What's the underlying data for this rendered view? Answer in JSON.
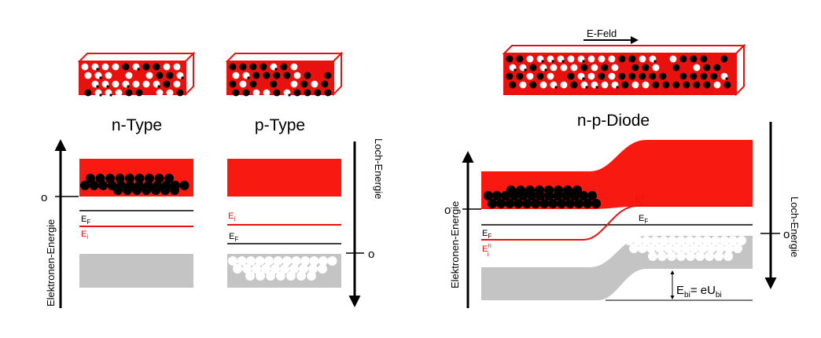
{
  "colors": {
    "conduction_band": "#f81a10",
    "valence_band": "#c4c4c4",
    "fermi_line": "#000000",
    "intrinsic_line": "#e8110d",
    "electron": "#000000",
    "hole": "#ffffff",
    "crystal_frame": "#e8110d"
  },
  "icons": {
    "electron": "black-dot",
    "hole": "white-dot",
    "crystal": "crystal-block-3d",
    "axis": "arrow"
  },
  "left_panel": {
    "n_title": "n-Type",
    "p_title": "p-Type",
    "y_axis_label": "Elektronen-Energie",
    "y_axis_zero": "o",
    "hole_axis_label": "Loch-Energie",
    "hole_axis_zero": "o",
    "n_fermi_symbol": "E",
    "n_fermi_sub": "F",
    "n_intrinsic_symbol": "E",
    "n_intrinsic_sub": "i",
    "p_intrinsic_symbol": "E",
    "p_intrinsic_sub": "i",
    "p_fermi_symbol": "E",
    "p_fermi_sub": "F"
  },
  "right_panel": {
    "field_label": "E-Feld",
    "diode_title": "n-p-Diode",
    "y_axis_label": "Elektronen-Energie",
    "y_axis_zero": "o",
    "hole_axis_label": "Loch-Energie",
    "hole_axis_zero": "o",
    "fermi_symbol_left": "E",
    "fermi_sub_left": "F",
    "intrinsic_symbol_left": "E",
    "intrinsic_sup_left": "n",
    "intrinsic_sub_left": "i",
    "intrinsic_symbol_right": "E",
    "intrinsic_sup_right": "p",
    "intrinsic_sub_right": "i",
    "fermi_symbol_right": "E",
    "fermi_sub_right": "F",
    "builtin_symbol": "E",
    "builtin_sub": "bi",
    "builtin_eq": "= eU",
    "builtin_eq_sub": "bi"
  }
}
